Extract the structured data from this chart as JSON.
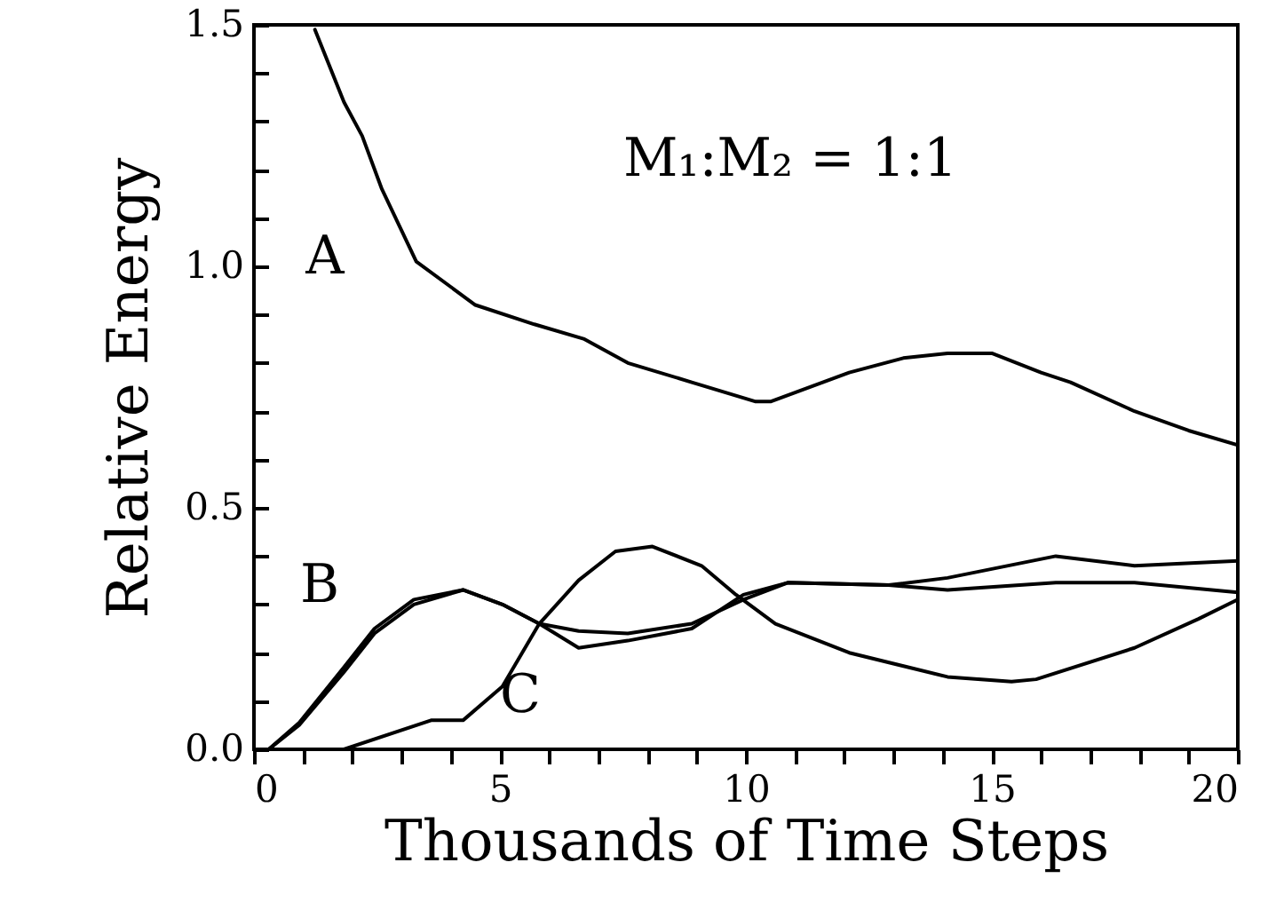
{
  "chart_data": {
    "type": "line",
    "xlabel": "Thousands of Time Steps",
    "ylabel": "Relative Energy",
    "xlim": [
      0,
      20
    ],
    "ylim": [
      0,
      1.5
    ],
    "xticks": [
      0,
      {
        "value": 1,
        "label": null
      },
      {
        "value": 2,
        "label": null
      },
      {
        "value": 3,
        "label": null
      },
      {
        "value": 4,
        "label": null
      },
      5,
      {
        "value": 6,
        "label": null
      },
      {
        "value": 7,
        "label": null
      },
      {
        "value": 8,
        "label": null
      },
      {
        "value": 9,
        "label": null
      },
      10,
      {
        "value": 11,
        "label": null
      },
      {
        "value": 12,
        "label": null
      },
      {
        "value": 13,
        "label": null
      },
      {
        "value": 14,
        "label": null
      },
      15,
      {
        "value": 16,
        "label": null
      },
      {
        "value": 17,
        "label": null
      },
      {
        "value": 18,
        "label": null
      },
      {
        "value": 19,
        "label": null
      },
      20
    ],
    "yticks": [
      {
        "value": 0,
        "label": "0.0"
      },
      {
        "value": 0.1,
        "label": null
      },
      {
        "value": 0.2,
        "label": null
      },
      {
        "value": 0.3,
        "label": null
      },
      {
        "value": 0.4,
        "label": null
      },
      {
        "value": 0.5,
        "label": "0.5"
      },
      {
        "value": 0.6,
        "label": null
      },
      {
        "value": 0.7,
        "label": null
      },
      {
        "value": 0.8,
        "label": null
      },
      {
        "value": 0.9,
        "label": null
      },
      {
        "value": 1,
        "label": "1.0"
      },
      {
        "value": 1.1,
        "label": null
      },
      {
        "value": 1.2,
        "label": null
      },
      {
        "value": 1.3,
        "label": null
      },
      {
        "value": 1.4,
        "label": null
      },
      {
        "value": 1.5,
        "label": "1.5"
      }
    ],
    "grid": false,
    "line_style": "solid",
    "marker": "none",
    "series": [
      {
        "color": "#000000",
        "x": [
          1.24,
          1.83,
          2.2,
          2.6,
          3.3,
          4.5,
          5.7,
          6.7,
          7.6,
          8.9,
          10.2,
          10.5,
          12.1,
          13.2,
          14.1,
          15.0,
          16.0,
          16.6,
          17.9,
          19.0,
          20
        ],
        "values": [
          1.49,
          1.34,
          1.27,
          1.16,
          1.01,
          0.92,
          0.88,
          0.85,
          0.8,
          0.76,
          0.72,
          0.72,
          0.78,
          0.81,
          0.82,
          0.82,
          0.78,
          0.76,
          0.7,
          0.66,
          0.63
        ]
      },
      {
        "color": "#000000",
        "x": [
          0,
          0.3,
          0.92,
          1.83,
          2.45,
          3.25,
          4.25,
          5.05,
          5.8,
          6.6,
          7.6,
          8.9,
          9.95,
          10.85,
          12.9,
          14.1,
          16.3,
          17.9,
          20
        ],
        "values": [
          0,
          0,
          0.055,
          0.17,
          0.25,
          0.31,
          0.33,
          0.3,
          0.26,
          0.21,
          0.225,
          0.25,
          0.32,
          0.345,
          0.34,
          0.355,
          0.4,
          0.38,
          0.39
        ]
      },
      {
        "color": "#000000",
        "x": [
          0,
          0.3,
          0.92,
          1.83,
          2.45,
          3.25,
          4.25,
          5.05,
          5.8,
          6.6,
          7.6,
          8.9,
          9.95,
          10.85,
          12.9,
          14.1,
          16.3,
          17.9,
          20
        ],
        "values": [
          0,
          0,
          0.05,
          0.16,
          0.24,
          0.3,
          0.33,
          0.3,
          0.26,
          0.245,
          0.24,
          0.26,
          0.31,
          0.345,
          0.34,
          0.33,
          0.345,
          0.345,
          0.325
        ]
      },
      {
        "color": "#000000",
        "x": [
          1.83,
          3.6,
          4.25,
          5.05,
          5.8,
          6.6,
          7.35,
          8.1,
          9.1,
          9.8,
          10.6,
          12.1,
          14.1,
          15.4,
          15.9,
          17.9,
          19.2,
          20
        ],
        "values": [
          0,
          0.06,
          0.06,
          0.13,
          0.26,
          0.35,
          0.41,
          0.42,
          0.38,
          0.32,
          0.26,
          0.2,
          0.15,
          0.14,
          0.145,
          0.21,
          0.27,
          0.31
        ]
      }
    ],
    "annotations": [
      "A",
      "B",
      "C",
      "M₁:M₂ = 1:1"
    ]
  }
}
